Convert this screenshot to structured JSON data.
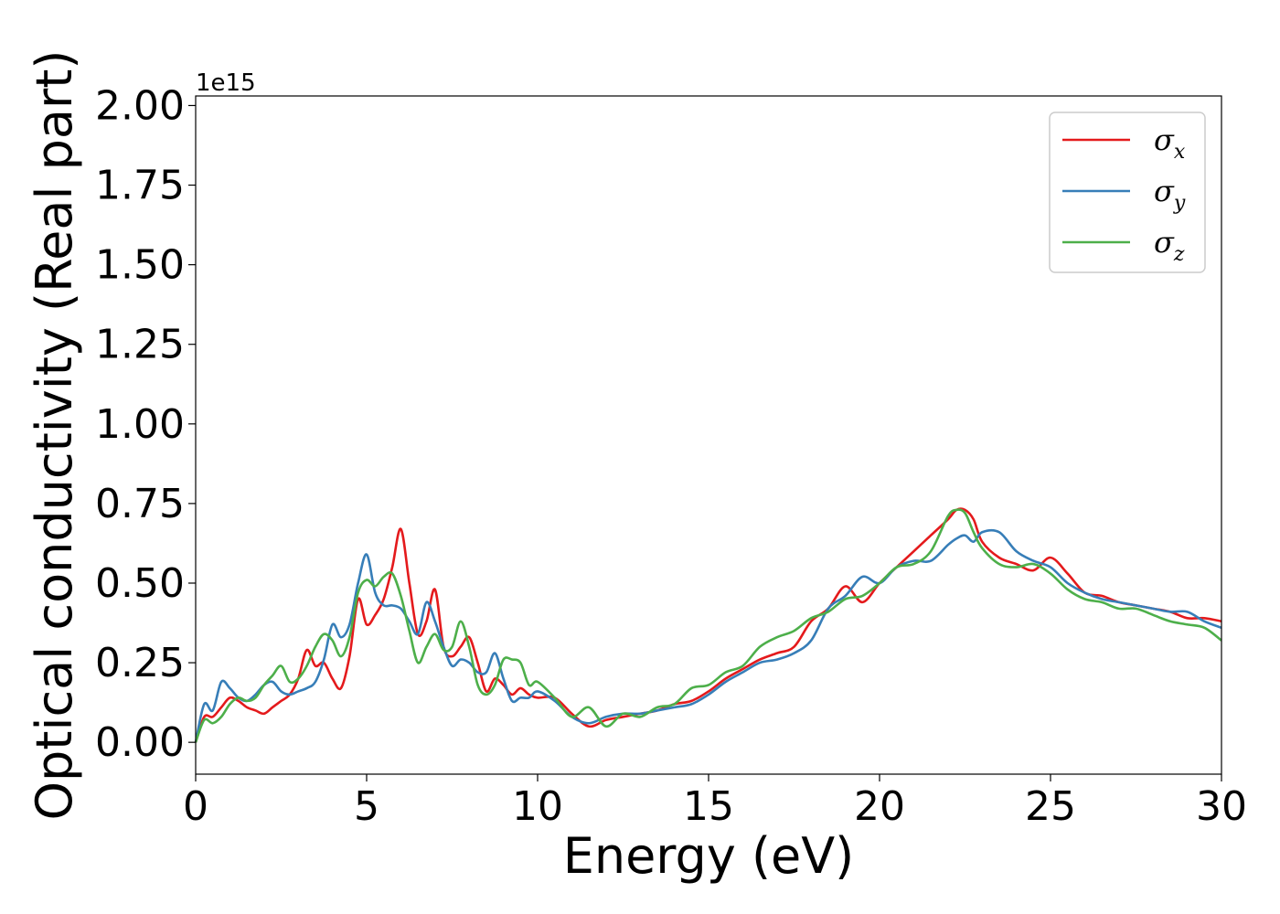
{
  "chart_data": {
    "type": "line",
    "title": "",
    "xlabel": "Energy (eV)",
    "ylabel": "Optical conductivity (Real part)",
    "y_offset_label": "1e15",
    "xlim": [
      0,
      30
    ],
    "ylim": [
      -0.1,
      2.03
    ],
    "x_ticks": [
      0,
      5,
      10,
      15,
      20,
      25,
      30
    ],
    "x_tick_labels": [
      "0",
      "5",
      "10",
      "15",
      "20",
      "25",
      "30"
    ],
    "y_ticks": [
      0,
      0.25,
      0.5,
      0.75,
      1.0,
      1.25,
      1.5,
      1.75,
      2.0
    ],
    "y_tick_labels": [
      "0.00",
      "0.25",
      "0.50",
      "0.75",
      "1.00",
      "1.25",
      "1.50",
      "1.75",
      "2.00"
    ],
    "grid": false,
    "legend_position": "top-right",
    "x": [
      0,
      0.25,
      0.5,
      0.75,
      1,
      1.25,
      1.5,
      1.75,
      2,
      2.25,
      2.5,
      2.75,
      3,
      3.25,
      3.5,
      3.75,
      4,
      4.25,
      4.5,
      4.75,
      5,
      5.25,
      5.5,
      5.75,
      6,
      6.25,
      6.5,
      6.75,
      7,
      7.25,
      7.5,
      7.75,
      8,
      8.25,
      8.5,
      8.75,
      9,
      9.25,
      9.5,
      9.75,
      10,
      10.5,
      11,
      11.5,
      12,
      12.5,
      13,
      13.5,
      14,
      14.5,
      15,
      15.5,
      16,
      16.5,
      17,
      17.5,
      18,
      18.5,
      19,
      19.5,
      20,
      20.5,
      21,
      21.5,
      22,
      22.25,
      22.5,
      22.75,
      23,
      23.5,
      24,
      24.5,
      25,
      25.5,
      26,
      26.5,
      27,
      27.5,
      28,
      28.5,
      29,
      29.5,
      30
    ],
    "series": [
      {
        "name": "σ",
        "subscript": "x",
        "color": "#e41a1c",
        "values": [
          0,
          0.08,
          0.08,
          0.11,
          0.14,
          0.13,
          0.11,
          0.1,
          0.09,
          0.11,
          0.13,
          0.15,
          0.2,
          0.29,
          0.24,
          0.25,
          0.2,
          0.17,
          0.27,
          0.45,
          0.37,
          0.4,
          0.45,
          0.55,
          0.67,
          0.5,
          0.34,
          0.38,
          0.48,
          0.3,
          0.27,
          0.3,
          0.33,
          0.25,
          0.16,
          0.2,
          0.18,
          0.15,
          0.17,
          0.15,
          0.14,
          0.14,
          0.09,
          0.05,
          0.07,
          0.08,
          0.09,
          0.1,
          0.12,
          0.13,
          0.16,
          0.2,
          0.23,
          0.26,
          0.28,
          0.3,
          0.38,
          0.42,
          0.49,
          0.44,
          0.5,
          0.55,
          0.6,
          0.65,
          0.7,
          0.73,
          0.73,
          0.7,
          0.63,
          0.58,
          0.56,
          0.54,
          0.58,
          0.53,
          0.47,
          0.46,
          0.44,
          0.43,
          0.42,
          0.41,
          0.39,
          0.39,
          0.38
        ]
      },
      {
        "name": "σ",
        "subscript": "y",
        "color": "#377eb8",
        "values": [
          0,
          0.12,
          0.1,
          0.19,
          0.17,
          0.14,
          0.13,
          0.15,
          0.18,
          0.19,
          0.16,
          0.15,
          0.16,
          0.17,
          0.19,
          0.26,
          0.37,
          0.33,
          0.37,
          0.5,
          0.59,
          0.47,
          0.43,
          0.43,
          0.42,
          0.38,
          0.34,
          0.44,
          0.38,
          0.3,
          0.24,
          0.26,
          0.25,
          0.22,
          0.22,
          0.28,
          0.2,
          0.13,
          0.14,
          0.14,
          0.16,
          0.13,
          0.08,
          0.06,
          0.08,
          0.09,
          0.09,
          0.1,
          0.11,
          0.12,
          0.15,
          0.19,
          0.22,
          0.25,
          0.26,
          0.28,
          0.32,
          0.42,
          0.46,
          0.52,
          0.5,
          0.55,
          0.57,
          0.57,
          0.62,
          0.64,
          0.65,
          0.63,
          0.66,
          0.66,
          0.6,
          0.57,
          0.55,
          0.5,
          0.47,
          0.45,
          0.44,
          0.43,
          0.42,
          0.41,
          0.41,
          0.38,
          0.36
        ]
      },
      {
        "name": "σ",
        "subscript": "z",
        "color": "#4daf4a",
        "values": [
          0,
          0.07,
          0.06,
          0.08,
          0.12,
          0.14,
          0.13,
          0.14,
          0.18,
          0.21,
          0.24,
          0.19,
          0.2,
          0.24,
          0.3,
          0.34,
          0.32,
          0.27,
          0.33,
          0.47,
          0.51,
          0.49,
          0.52,
          0.53,
          0.46,
          0.35,
          0.25,
          0.3,
          0.34,
          0.29,
          0.3,
          0.38,
          0.3,
          0.18,
          0.15,
          0.18,
          0.26,
          0.26,
          0.25,
          0.18,
          0.19,
          0.14,
          0.08,
          0.11,
          0.05,
          0.09,
          0.08,
          0.11,
          0.12,
          0.17,
          0.18,
          0.22,
          0.24,
          0.3,
          0.33,
          0.35,
          0.39,
          0.41,
          0.45,
          0.46,
          0.5,
          0.55,
          0.56,
          0.6,
          0.71,
          0.73,
          0.72,
          0.66,
          0.61,
          0.56,
          0.55,
          0.56,
          0.53,
          0.48,
          0.45,
          0.44,
          0.42,
          0.42,
          0.4,
          0.38,
          0.37,
          0.36,
          0.32
        ]
      }
    ]
  }
}
